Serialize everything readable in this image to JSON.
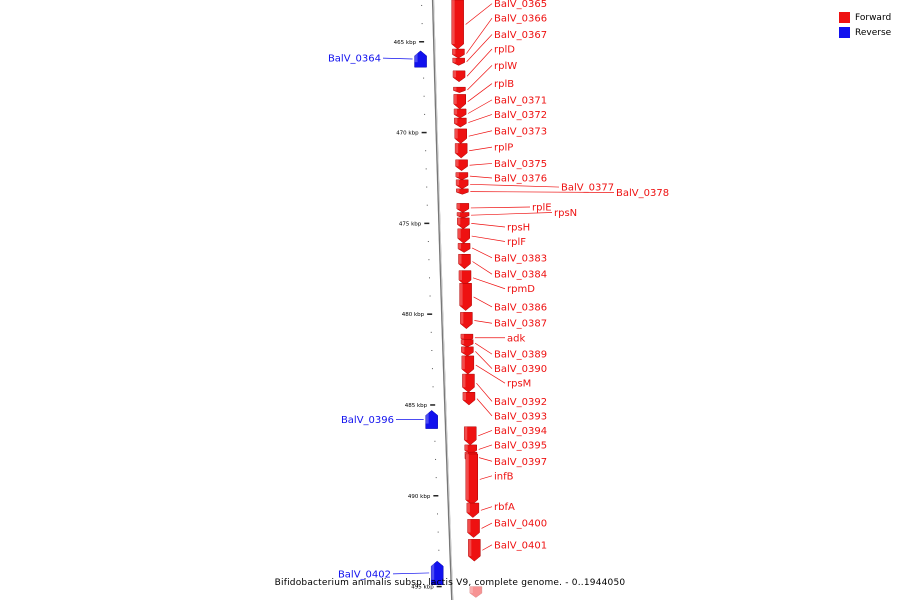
{
  "genome": {
    "title": "Bifidobacterium animalis subsp. lactis V9, complete genome. - 0..1944050",
    "view_kbp": [
      462.7,
      495.6
    ]
  },
  "legend": {
    "forward": {
      "label": "Forward",
      "color": "#ee1111"
    },
    "reverse": {
      "label": "Reverse",
      "color": "#1111ee"
    }
  },
  "ticks": [
    {
      "kbp": 465,
      "label": "465 kbp"
    },
    {
      "kbp": 470,
      "label": "470 kbp"
    },
    {
      "kbp": 475,
      "label": "475 kbp"
    },
    {
      "kbp": 480,
      "label": "480 kbp"
    },
    {
      "kbp": 485,
      "label": "485 kbp"
    },
    {
      "kbp": 490,
      "label": "490 kbp"
    },
    {
      "kbp": 495,
      "label": "495 kbp"
    }
  ],
  "genes": [
    {
      "name": "BalV_0364",
      "strand": "reverse",
      "start": 465.5,
      "end": 466.4,
      "label_kbp": 465.9
    },
    {
      "name": "BalV_0365",
      "strand": "forward",
      "start": 462.7,
      "end": 465.4,
      "label_kbp": 462.9
    },
    {
      "name": "BalV_0366",
      "strand": "forward",
      "start": 465.4,
      "end": 465.9,
      "label_kbp": 463.7
    },
    {
      "name": "BalV_0367",
      "strand": "forward",
      "start": 465.9,
      "end": 466.3,
      "label_kbp": 464.6
    },
    {
      "name": "rplD",
      "strand": "forward",
      "start": 466.6,
      "end": 467.2,
      "label_kbp": 465.4
    },
    {
      "name": "rplW",
      "strand": "forward",
      "start": 467.5,
      "end": 467.8,
      "label_kbp": 466.3
    },
    {
      "name": "rplB",
      "strand": "forward",
      "start": 467.9,
      "end": 468.7,
      "label_kbp": 467.3
    },
    {
      "name": "BalV_0371",
      "strand": "forward",
      "start": 468.7,
      "end": 469.2,
      "label_kbp": 468.2
    },
    {
      "name": "BalV_0372",
      "strand": "forward",
      "start": 469.2,
      "end": 469.7,
      "label_kbp": 469.0
    },
    {
      "name": "BalV_0373",
      "strand": "forward",
      "start": 469.8,
      "end": 470.6,
      "label_kbp": 469.9
    },
    {
      "name": "rplP",
      "strand": "forward",
      "start": 470.6,
      "end": 471.4,
      "label_kbp": 470.8
    },
    {
      "name": "BalV_0375",
      "strand": "forward",
      "start": 471.5,
      "end": 472.1,
      "label_kbp": 471.7
    },
    {
      "name": "BalV_0376",
      "strand": "forward",
      "start": 472.2,
      "end": 472.6,
      "label_kbp": 472.5
    },
    {
      "name": "BalV_0377",
      "strand": "forward",
      "start": 472.6,
      "end": 473.1,
      "label_kbp": 473.0
    },
    {
      "name": "BalV_0378",
      "strand": "forward",
      "start": 473.1,
      "end": 473.4,
      "label_kbp": 473.3
    },
    {
      "name": "rplE",
      "strand": "forward",
      "start": 473.9,
      "end": 474.4,
      "label_kbp": 474.1
    },
    {
      "name": "rpsN",
      "strand": "forward",
      "start": 474.4,
      "end": 474.7,
      "label_kbp": 474.4
    },
    {
      "name": "rpsH",
      "strand": "forward",
      "start": 474.7,
      "end": 475.3,
      "label_kbp": 475.2
    },
    {
      "name": "rplF",
      "strand": "forward",
      "start": 475.3,
      "end": 476.1,
      "label_kbp": 476.0
    },
    {
      "name": "BalV_0383",
      "strand": "forward",
      "start": 476.1,
      "end": 476.6,
      "label_kbp": 476.9
    },
    {
      "name": "BalV_0384",
      "strand": "forward",
      "start": 476.7,
      "end": 477.5,
      "label_kbp": 477.8
    },
    {
      "name": "rpmD",
      "strand": "forward",
      "start": 477.6,
      "end": 478.4,
      "label_kbp": 478.6
    },
    {
      "name": "BalV_0386",
      "strand": "forward",
      "start": 478.3,
      "end": 479.8,
      "label_kbp": 479.6
    },
    {
      "name": "BalV_0387",
      "strand": "forward",
      "start": 479.9,
      "end": 480.8,
      "label_kbp": 480.5
    },
    {
      "name": "adk",
      "strand": "forward",
      "start": 481.1,
      "end": 481.5,
      "label_kbp": 481.3
    },
    {
      "name": "BalV_0389",
      "strand": "forward",
      "start": 481.4,
      "end": 481.8,
      "label_kbp": 482.2
    },
    {
      "name": "BalV_0390",
      "strand": "forward",
      "start": 481.8,
      "end": 482.3,
      "label_kbp": 483.0
    },
    {
      "name": "rpsM",
      "strand": "forward",
      "start": 482.3,
      "end": 483.3,
      "label_kbp": 483.8
    },
    {
      "name": "BalV_0392",
      "strand": "forward",
      "start": 483.3,
      "end": 484.3,
      "label_kbp": 484.8
    },
    {
      "name": "BalV_0393",
      "strand": "forward",
      "start": 484.3,
      "end": 485.0,
      "label_kbp": 485.6
    },
    {
      "name": "BalV_0394",
      "strand": "forward",
      "start": 486.2,
      "end": 487.2,
      "label_kbp": 486.4
    },
    {
      "name": "BalV_0395",
      "strand": "forward",
      "start": 487.2,
      "end": 487.7,
      "label_kbp": 487.2
    },
    {
      "name": "BalV_0396",
      "strand": "reverse",
      "start": 485.3,
      "end": 486.3,
      "label_kbp": 485.8
    },
    {
      "name": "BalV_0397",
      "strand": "forward",
      "start": 487.6,
      "end": 488.2,
      "label_kbp": 488.1
    },
    {
      "name": "infB",
      "strand": "forward",
      "start": 487.7,
      "end": 490.5,
      "label_kbp": 488.9
    },
    {
      "name": "rbfA",
      "strand": "forward",
      "start": 490.4,
      "end": 491.2,
      "label_kbp": 490.6
    },
    {
      "name": "BalV_0400",
      "strand": "forward",
      "start": 491.3,
      "end": 492.3,
      "label_kbp": 491.5
    },
    {
      "name": "BalV_0401",
      "strand": "forward",
      "start": 492.4,
      "end": 493.6,
      "label_kbp": 492.7
    },
    {
      "name": "BalV_0402",
      "strand": "reverse",
      "start": 493.6,
      "end": 494.9,
      "label_kbp": 494.3
    },
    {
      "name": "",
      "strand": "forward",
      "start": 495.0,
      "end": 495.6,
      "label_kbp": 495.0
    }
  ]
}
